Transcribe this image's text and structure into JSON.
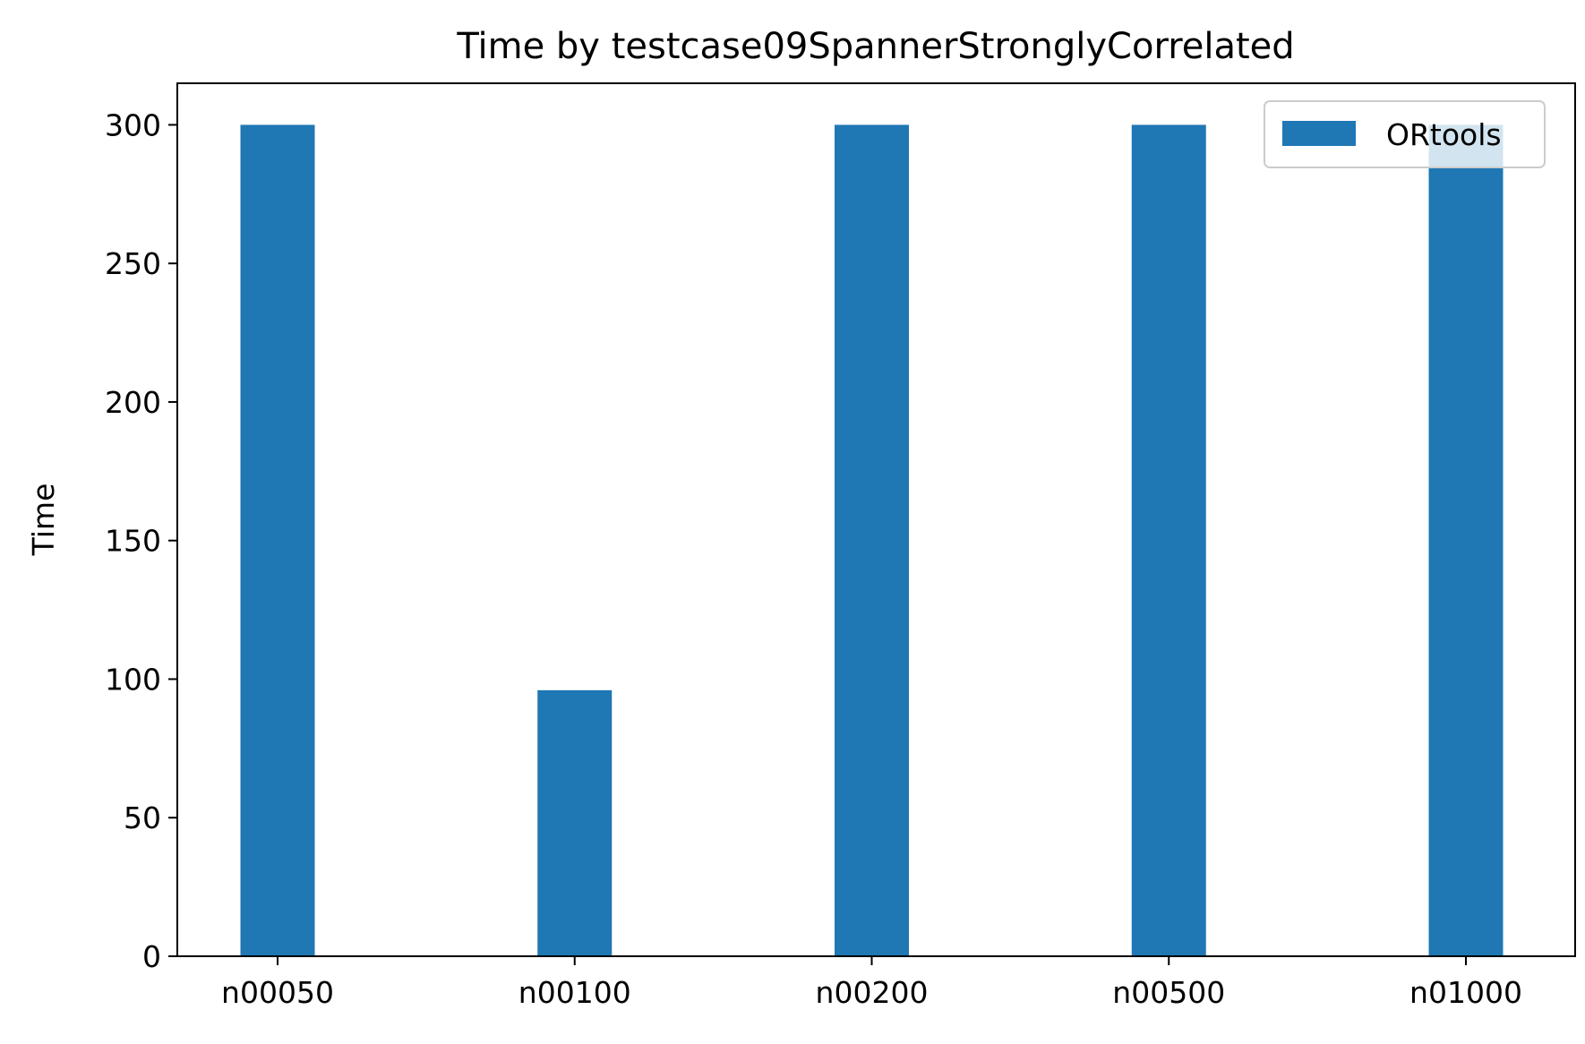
{
  "chart_data": {
    "type": "bar",
    "title": "Time by testcase09SpannerStronglyCorrelated",
    "xlabel": "",
    "ylabel": "Time",
    "categories": [
      "n00050",
      "n00100",
      "n00200",
      "n00500",
      "n01000"
    ],
    "series": [
      {
        "name": "ORtools",
        "values": [
          300,
          96,
          300,
          300,
          300
        ],
        "color": "#1f77b4"
      }
    ],
    "ylim": [
      0,
      315
    ],
    "yticks": [
      0,
      50,
      100,
      150,
      200,
      250,
      300
    ],
    "grid": false,
    "legend_position": "top-right"
  }
}
